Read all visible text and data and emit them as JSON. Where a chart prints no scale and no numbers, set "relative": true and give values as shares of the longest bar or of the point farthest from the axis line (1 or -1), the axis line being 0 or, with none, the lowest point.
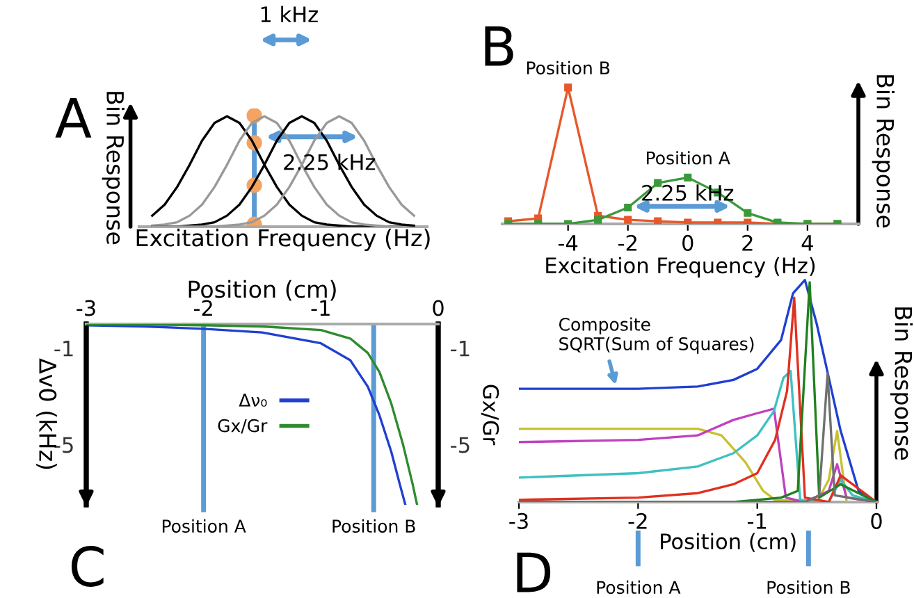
{
  "chart_data": [
    {
      "type": "line",
      "title": "A",
      "xlabel": "Excitation Frequency (Hz)",
      "ylabel": "Bin Response",
      "relative": true,
      "tick_labels": false,
      "marker": "none",
      "categories": [
        null,
        null,
        null,
        null,
        null,
        null,
        null,
        null,
        null,
        null,
        null,
        null,
        null,
        null,
        null,
        null,
        null,
        null,
        null,
        null,
        null,
        null
      ],
      "series": [
        {
          "color": "#000000",
          "values": [
            0.1,
            0.2,
            0.36,
            0.56,
            0.78,
            0.94,
            1,
            0.94,
            0.78,
            0.56,
            0.36,
            0.2,
            0.1,
            0.04,
            0.02,
            0.01,
            0,
            0,
            0,
            0,
            0,
            0
          ]
        },
        {
          "color": "#999999",
          "values": [
            0.01,
            0.02,
            0.04,
            0.1,
            0.2,
            0.36,
            0.56,
            0.78,
            0.94,
            1,
            0.94,
            0.78,
            0.56,
            0.36,
            0.2,
            0.1,
            0.04,
            0.02,
            0.01,
            0,
            0,
            0
          ]
        },
        {
          "color": "#000000",
          "values": [
            0,
            0,
            0,
            0.01,
            0.02,
            0.04,
            0.1,
            0.2,
            0.36,
            0.56,
            0.78,
            0.94,
            1,
            0.94,
            0.78,
            0.56,
            0.36,
            0.2,
            0.1,
            0.04,
            0.02,
            0.01
          ]
        },
        {
          "color": "#999999",
          "values": [
            0,
            0,
            0,
            0,
            0,
            0,
            0.01,
            0.02,
            0.04,
            0.1,
            0.2,
            0.36,
            0.56,
            0.78,
            0.94,
            1,
            0.94,
            0.78,
            0.56,
            0.36,
            0.2,
            0.1
          ]
        }
      ],
      "annotations": [
        "1 kHz",
        "2.25 kHz"
      ]
    },
    {
      "type": "line",
      "title": "B",
      "xlabel": "Excitation Frequency (Hz)",
      "ylabel": "Bin Response",
      "relative": true,
      "tick_labels": "x",
      "marker": "square",
      "xlim": [
        -6.2,
        5.7
      ],
      "xticks": [
        -4,
        -2,
        0,
        2,
        4
      ],
      "series": [
        {
          "name": "Position B",
          "color": "#e8572a",
          "x": [
            -6,
            -5,
            -4,
            -3,
            -2,
            -1,
            0,
            1,
            2,
            3,
            4,
            5
          ],
          "values": [
            0.02,
            0.04,
            1,
            0.06,
            0.03,
            0.02,
            0.01,
            0.01,
            0.01,
            0,
            0,
            0
          ]
        },
        {
          "name": "Position A",
          "color": "#3a9a3a",
          "x": [
            -6,
            -5,
            -4,
            -3,
            -2,
            -1,
            0,
            1,
            2,
            3,
            4,
            5
          ],
          "values": [
            0,
            0,
            0,
            0.03,
            0.12,
            0.3,
            0.34,
            0.23,
            0.08,
            0.01,
            0,
            0
          ]
        }
      ],
      "annotations": [
        "2.25 kHz"
      ]
    },
    {
      "type": "line",
      "title": "C",
      "xlabel": "Position (cm)",
      "ylabel": "Δv0 (kHz)",
      "y2label": "Gx/Gr",
      "legend": "center",
      "marker": "none",
      "xlim": [
        -3,
        0
      ],
      "xticks": [
        -3,
        -2,
        -1,
        0
      ],
      "ylim": [
        -7.5,
        0
      ],
      "yticks": [
        -1,
        -5
      ],
      "y2lim": [
        -7.5,
        0
      ],
      "y2ticks": [
        -1,
        -5
      ],
      "series": [
        {
          "name": "Δν₀",
          "color": "#2040d0",
          "x": [
            -3,
            -2.5,
            -2,
            -1.5,
            -1,
            -0.75,
            -0.6,
            -0.5,
            -0.4,
            -0.33,
            -0.28
          ],
          "values": [
            -0.05,
            -0.1,
            -0.2,
            -0.35,
            -0.8,
            -1.5,
            -2.6,
            -3.8,
            -5.3,
            -6.6,
            -7.5
          ]
        },
        {
          "name": "Gx/Gr",
          "axis": "y2",
          "color": "#2e8b2e",
          "x": [
            -3,
            -2,
            -1.5,
            -1,
            -0.75,
            -0.6,
            -0.5,
            -0.4,
            -0.3,
            -0.22,
            -0.18
          ],
          "values": [
            0,
            -0.05,
            -0.1,
            -0.25,
            -0.6,
            -1.2,
            -2.0,
            -3.3,
            -5.0,
            -6.6,
            -7.5
          ]
        }
      ],
      "ref_lines": [
        {
          "axis": "x",
          "value": -2,
          "label": "Position A",
          "color": "#5b9bd5"
        },
        {
          "axis": "x",
          "value": -0.55,
          "label": "Position B",
          "color": "#5b9bd5"
        }
      ]
    },
    {
      "type": "line",
      "title": "D",
      "xlabel": "Position (cm)",
      "ylabel": "Bin Response",
      "relative": true,
      "tick_labels": "x",
      "marker": "none",
      "xlim": [
        -3,
        0
      ],
      "xticks": [
        -3,
        -2,
        -1,
        0
      ],
      "series": [
        {
          "color": "#2040d0",
          "x": [
            -3,
            -2,
            -1.5,
            -1.2,
            -1,
            -0.8,
            -0.7,
            -0.6,
            -0.5,
            -0.3,
            -0.15,
            -0.05,
            0
          ],
          "values": [
            0.51,
            0.51,
            0.52,
            0.55,
            0.6,
            0.73,
            0.94,
            1,
            0.8,
            0.32,
            0.05,
            0.01,
            0
          ]
        },
        {
          "color": "#c8c030",
          "x": [
            -3,
            -1.5,
            -1.3,
            -1.1,
            -0.95,
            -0.85,
            -0.5,
            -0.4,
            -0.33,
            -0.25,
            0
          ],
          "values": [
            0.33,
            0.33,
            0.3,
            0.18,
            0.05,
            0.01,
            0,
            0.1,
            0.32,
            0,
            0
          ]
        },
        {
          "color": "#c040c0",
          "x": [
            -3,
            -2,
            -1.5,
            -1.2,
            -1,
            -0.86,
            -0.76,
            -0.6,
            -0.4,
            -0.33,
            -0.25,
            0
          ],
          "values": [
            0.27,
            0.28,
            0.3,
            0.37,
            0.4,
            0.42,
            0.02,
            0,
            0.05,
            0.17,
            0.02,
            0
          ]
        },
        {
          "color": "#40c0c0",
          "x": [
            -3,
            -2,
            -1.5,
            -1.2,
            -1,
            -0.86,
            -0.78,
            -0.72,
            -0.64,
            -0.4,
            -0.3,
            -0.2,
            0
          ],
          "values": [
            0.11,
            0.13,
            0.16,
            0.22,
            0.3,
            0.41,
            0.56,
            0.59,
            0.01,
            0,
            0.1,
            0.03,
            0
          ]
        },
        {
          "color": "#e03020",
          "x": [
            -3,
            -2,
            -1.5,
            -1.2,
            -1,
            -0.85,
            -0.75,
            -0.69,
            -0.6,
            -0.4,
            -0.3,
            0
          ],
          "values": [
            0.01,
            0.02,
            0.04,
            0.08,
            0.13,
            0.28,
            0.5,
            0.92,
            0.02,
            0,
            0.12,
            0
          ]
        },
        {
          "color": "#208020",
          "x": [
            -3,
            -1.2,
            -1,
            -0.8,
            -0.66,
            -0.56,
            -0.48,
            -0.3,
            0
          ],
          "values": [
            0,
            0,
            0.01,
            0.02,
            0.05,
            0.99,
            0.02,
            0.08,
            0
          ]
        },
        {
          "color": "#707070",
          "x": [
            -3,
            -0.6,
            -0.48,
            -0.41,
            -0.35,
            0
          ],
          "values": [
            0,
            0,
            0.03,
            0.58,
            0.03,
            0
          ]
        }
      ],
      "annotations": [
        {
          "text": "Composite\nSQRT(Sum of Squares)",
          "x": -2.18,
          "y": 0.51
        }
      ],
      "ref_lines": [
        {
          "axis": "x",
          "value": -2,
          "label": "Position A",
          "color": "#5b9bd5"
        },
        {
          "axis": "x",
          "value": -0.57,
          "label": "Position B",
          "color": "#5b9bd5"
        }
      ]
    }
  ]
}
